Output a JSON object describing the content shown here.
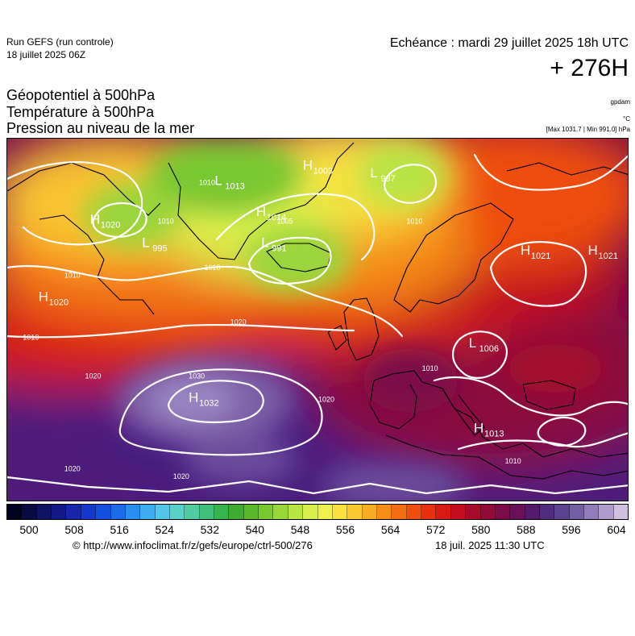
{
  "header": {
    "run_title": "Run GEFS (run controle)",
    "run_date": "18 juillet 2025 06Z",
    "echeance": "Echéance : mardi 29 juillet 2025 18h UTC",
    "lead_time": "+ 276H"
  },
  "parameters": [
    "Géopotentiel à 500hPa",
    "Température à 500hPa",
    "Pression au niveau de la mer"
  ],
  "units": {
    "geopotential": "gpdam",
    "temperature": "°C",
    "pressure_range": "[Max 1031.7 | Min 991.0] hPa"
  },
  "pressure_centers": [
    {
      "type": "H",
      "value": "1020",
      "lon": -54,
      "lat": 61
    },
    {
      "type": "L",
      "value": "995",
      "lon": -44,
      "lat": 58
    },
    {
      "type": "H",
      "value": "1020",
      "lon": -64,
      "lat": 51
    },
    {
      "type": "H",
      "value": "1014",
      "lon": -22,
      "lat": 62
    },
    {
      "type": "L",
      "value": "1013",
      "lon": -30,
      "lat": 66
    },
    {
      "type": "H",
      "value": "1003",
      "lon": -13,
      "lat": 68
    },
    {
      "type": "L",
      "value": "997",
      "lon": 0,
      "lat": 67
    },
    {
      "type": "L",
      "value": "991",
      "lon": -21,
      "lat": 58
    },
    {
      "type": "H",
      "value": "1021",
      "lon": 29,
      "lat": 57
    },
    {
      "type": "H",
      "value": "1021",
      "lon": 42,
      "lat": 57
    },
    {
      "type": "H",
      "value": "1032",
      "lon": -35,
      "lat": 38
    },
    {
      "type": "L",
      "value": "1006",
      "lon": 19,
      "lat": 45
    },
    {
      "type": "H",
      "value": "1013",
      "lon": 20,
      "lat": 34
    }
  ],
  "contour_labels": [
    {
      "value": "1010",
      "lon": -33,
      "lat": 66
    },
    {
      "value": "1010",
      "lon": -41,
      "lat": 61
    },
    {
      "value": "1010",
      "lon": -32,
      "lat": 55
    },
    {
      "value": "1010",
      "lon": -59,
      "lat": 54
    },
    {
      "value": "1010",
      "lon": -67,
      "lat": 46
    },
    {
      "value": "1010",
      "lon": 7,
      "lat": 61
    },
    {
      "value": "1010",
      "lon": 10,
      "lat": 42
    },
    {
      "value": "1010",
      "lon": 26,
      "lat": 30
    },
    {
      "value": "1005",
      "lon": -18,
      "lat": 61
    },
    {
      "value": "1020",
      "lon": -27,
      "lat": 48
    },
    {
      "value": "1020",
      "lon": -55,
      "lat": 41
    },
    {
      "value": "1020",
      "lon": -10,
      "lat": 38
    },
    {
      "value": "1020",
      "lon": -59,
      "lat": 29
    },
    {
      "value": "1020",
      "lon": -38,
      "lat": 28
    },
    {
      "value": "1030",
      "lon": -35,
      "lat": 41
    }
  ],
  "colorbar": {
    "colors": [
      "#000020",
      "#0a0a42",
      "#101265",
      "#121a88",
      "#1626aa",
      "#1438cc",
      "#1450e0",
      "#1c6ce8",
      "#2a8ef0",
      "#3eaef2",
      "#52c6e8",
      "#58d2c8",
      "#50cca0",
      "#40c078",
      "#38b44e",
      "#3eac30",
      "#5ab82a",
      "#78c830",
      "#98d63a",
      "#b8e444",
      "#d8ee4c",
      "#f0f04e",
      "#fbe040",
      "#fac830",
      "#f8ac22",
      "#f68e16",
      "#f26e10",
      "#ee4e0e",
      "#e6300e",
      "#d81a14",
      "#c20e1e",
      "#a80a2a",
      "#920a38",
      "#7c0a48",
      "#681058",
      "#561a6a",
      "#522a7e",
      "#5a4290",
      "#725ea4",
      "#907cb8",
      "#b09ccc",
      "#d0c0e0"
    ],
    "ticks": [
      "500",
      "508",
      "516",
      "524",
      "532",
      "540",
      "548",
      "556",
      "564",
      "572",
      "580",
      "588",
      "596",
      "604"
    ]
  },
  "footer": {
    "credit": "© http://www.infoclimat.fr/z/gefs/europe/ctrl-500/276",
    "issued": "18 juil. 2025 11:30 UTC"
  }
}
